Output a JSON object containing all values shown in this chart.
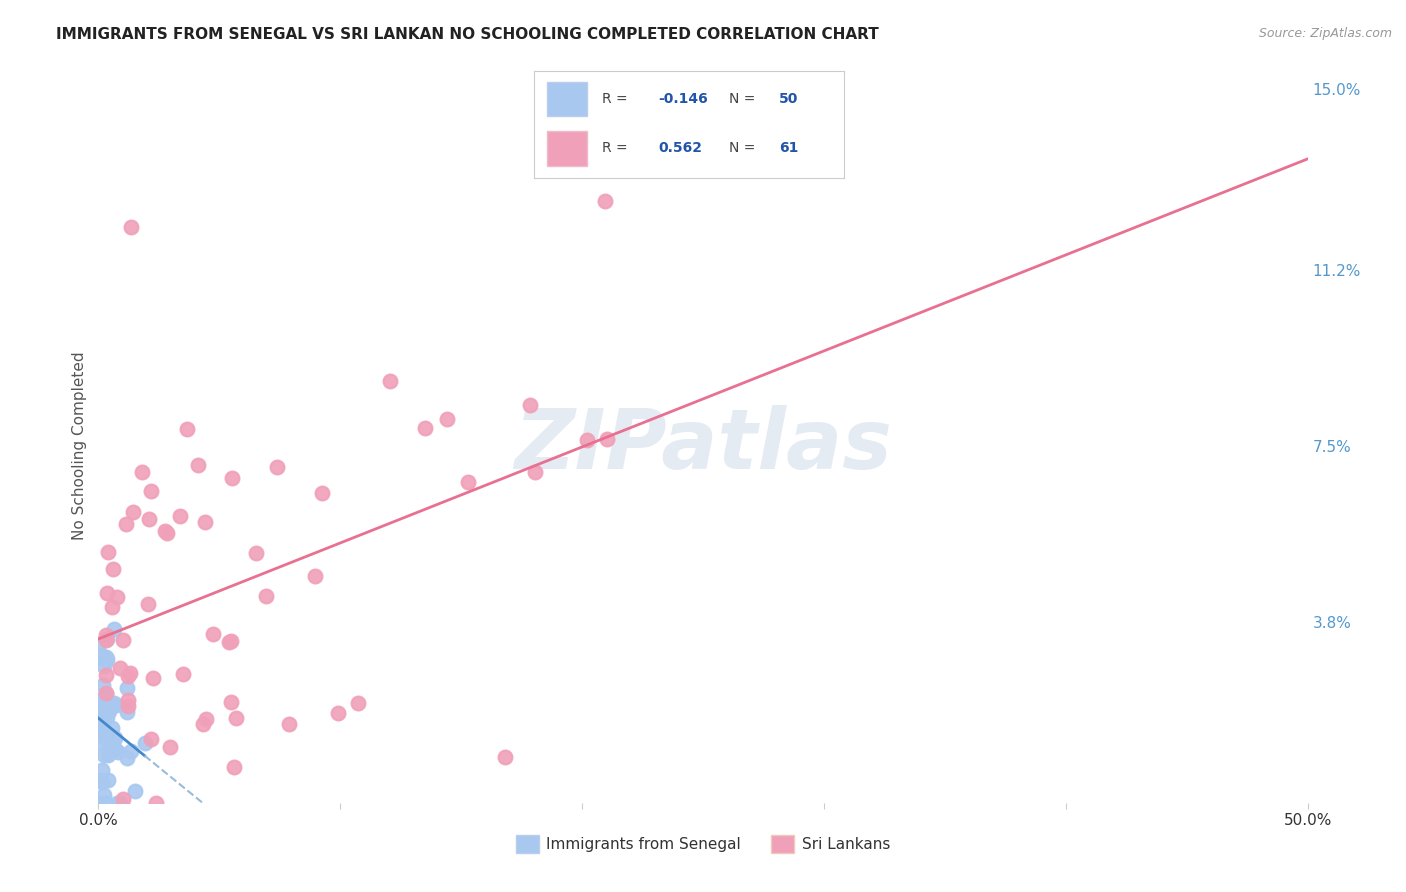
{
  "title": "IMMIGRANTS FROM SENEGAL VS SRI LANKAN NO SCHOOLING COMPLETED CORRELATION CHART",
  "source": "Source: ZipAtlas.com",
  "ylabel_label": "No Schooling Completed",
  "x_min": 0.0,
  "x_max": 0.5,
  "y_min": 0.0,
  "y_max": 0.15,
  "y_tick_labels_right": [
    "15.0%",
    "11.2%",
    "7.5%",
    "3.8%"
  ],
  "y_tick_vals_right": [
    0.15,
    0.112,
    0.075,
    0.038
  ],
  "senegal_color": "#a8c8f0",
  "srilanka_color": "#f0a0b8",
  "senegal_line_color": "#4488cc",
  "srilanka_line_color": "#e87090",
  "senegal_R": -0.146,
  "senegal_N": 50,
  "srilanka_R": 0.562,
  "srilanka_N": 61,
  "legend_label1": "Immigrants from Senegal",
  "legend_label2": "Sri Lankans",
  "watermark": "ZIPatlas",
  "background_color": "#ffffff",
  "grid_color": "#dddddd",
  "title_fontsize": 11,
  "axis_fontsize": 11
}
